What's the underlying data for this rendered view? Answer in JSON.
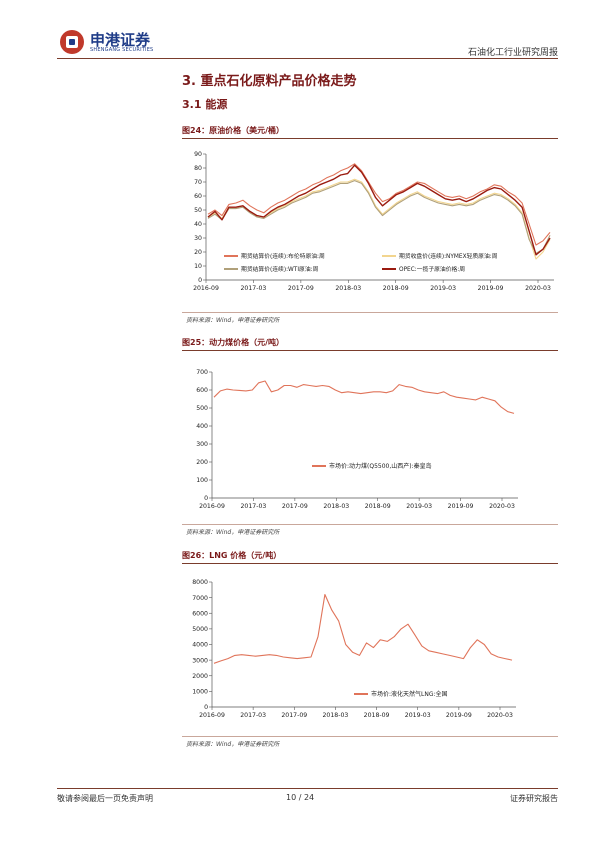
{
  "header": {
    "logo_cn": "申港证券",
    "logo_en": "SHENGANG SECURITIES",
    "report_type": "石油化工行业研究周报"
  },
  "section_title": "3. 重点石化原料产品价格走势",
  "subsection_title": "3.1 能源",
  "figures": [
    {
      "title": "图24：原油价格（美元/桶）",
      "source": "资料来源：Wind，申港证券研究所"
    },
    {
      "title": "图25：动力煤价格（元/吨）",
      "source": "资料来源：Wind，申港证券研究所"
    },
    {
      "title": "图26：LNG 价格（元/吨）",
      "source": "资料来源：Wind，申港证券研究所"
    }
  ],
  "footer": {
    "left": "敬请参阅最后一页免责声明",
    "page": "10 / 24",
    "right": "证券研究报告"
  },
  "chart_data": [
    {
      "type": "line",
      "ylim": [
        0,
        90
      ],
      "yticks": [
        0,
        10,
        20,
        30,
        40,
        50,
        60,
        70,
        80,
        90
      ],
      "x_labels": [
        "2016-09",
        "2017-03",
        "2017-09",
        "2018-03",
        "2018-09",
        "2019-03",
        "2019-09",
        "2020-03"
      ],
      "series": [
        {
          "name": "期货结算价(连续):布伦特原油:周",
          "color": "#e0745a",
          "values": [
            47,
            50,
            46,
            54,
            55,
            57,
            53,
            50,
            48,
            52,
            55,
            57,
            60,
            63,
            65,
            68,
            70,
            73,
            75,
            78,
            80,
            83,
            78,
            70,
            62,
            56,
            58,
            62,
            64,
            67,
            70,
            69,
            66,
            63,
            60,
            59,
            60,
            58,
            60,
            63,
            65,
            68,
            67,
            63,
            60,
            55,
            40,
            25,
            28,
            34
          ]
        },
        {
          "name": "期货收盘价(连续):NYMEX轻质原油:周",
          "color": "#f2d58f",
          "values": [
            45,
            48,
            44,
            52,
            52,
            53,
            49,
            46,
            45,
            48,
            51,
            53,
            56,
            58,
            60,
            63,
            64,
            66,
            68,
            70,
            70,
            72,
            70,
            63,
            53,
            47,
            51,
            55,
            58,
            61,
            63,
            60,
            58,
            56,
            55,
            54,
            55,
            54,
            55,
            58,
            60,
            62,
            61,
            58,
            54,
            48,
            30,
            15,
            20,
            29
          ]
        },
        {
          "name": "期货结算价(连续):WTI原油:周",
          "color": "#b0a07a",
          "values": [
            44,
            47,
            43,
            51,
            51,
            52,
            48,
            45,
            44,
            47,
            50,
            52,
            55,
            57,
            59,
            62,
            63,
            65,
            67,
            69,
            69,
            71,
            69,
            62,
            52,
            46,
            50,
            54,
            57,
            60,
            62,
            59,
            57,
            55,
            54,
            53,
            54,
            53,
            54,
            57,
            59,
            61,
            60,
            57,
            53,
            47,
            29,
            19,
            22,
            32
          ]
        },
        {
          "name": "OPEC:一揽子原油价格:周",
          "color": "#9a1b10",
          "values": [
            45,
            49,
            43,
            52,
            52,
            53,
            49,
            46,
            45,
            49,
            52,
            54,
            57,
            60,
            62,
            65,
            68,
            70,
            72,
            75,
            76,
            82,
            77,
            69,
            59,
            53,
            57,
            61,
            63,
            66,
            69,
            67,
            64,
            61,
            58,
            57,
            58,
            56,
            58,
            61,
            64,
            66,
            65,
            61,
            57,
            52,
            35,
            18,
            22,
            30
          ]
        }
      ]
    },
    {
      "type": "line",
      "ylim": [
        0,
        700
      ],
      "yticks": [
        0,
        100,
        200,
        300,
        400,
        500,
        600,
        700
      ],
      "x_labels": [
        "2016-09",
        "2017-03",
        "2017-09",
        "2018-03",
        "2018-09",
        "2019-03",
        "2019-09",
        "2020-03"
      ],
      "series": [
        {
          "name": "市场价:动力煤(Q5500,山西产):秦皇岛",
          "color": "#e0745a",
          "values": [
            560,
            595,
            605,
            600,
            598,
            595,
            600,
            640,
            650,
            590,
            600,
            625,
            625,
            615,
            630,
            625,
            620,
            625,
            620,
            600,
            585,
            590,
            585,
            580,
            585,
            590,
            590,
            585,
            595,
            630,
            620,
            615,
            600,
            590,
            585,
            580,
            590,
            570,
            560,
            555,
            550,
            545,
            560,
            550,
            540,
            505,
            480,
            470
          ]
        }
      ]
    },
    {
      "type": "line",
      "ylim": [
        0,
        8000
      ],
      "yticks": [
        0,
        1000,
        2000,
        3000,
        4000,
        5000,
        6000,
        7000,
        8000
      ],
      "x_labels": [
        "2016-09",
        "2017-03",
        "2017-09",
        "2018-03",
        "2018-09",
        "2019-03",
        "2019-09",
        "2020-03"
      ],
      "series": [
        {
          "name": "市场价:液化天然气LNG:全国",
          "color": "#e0745a",
          "values": [
            2800,
            2950,
            3100,
            3300,
            3350,
            3300,
            3250,
            3300,
            3350,
            3300,
            3200,
            3150,
            3100,
            3150,
            3200,
            4500,
            7200,
            6200,
            5500,
            4000,
            3500,
            3300,
            4100,
            3800,
            4300,
            4200,
            4500,
            5000,
            5300,
            4600,
            3900,
            3600,
            3500,
            3400,
            3300,
            3200,
            3100,
            3800,
            4300,
            4000,
            3400,
            3200,
            3100,
            3000
          ]
        }
      ]
    }
  ]
}
